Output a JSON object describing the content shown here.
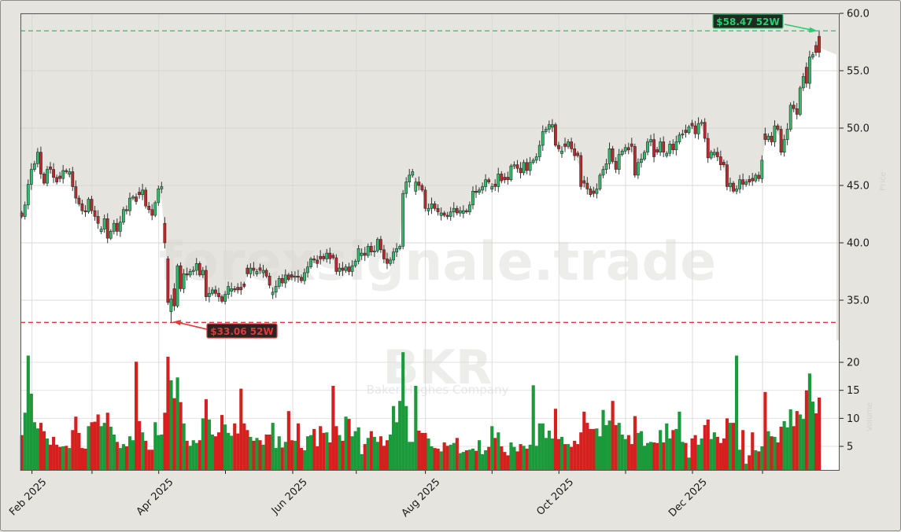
{
  "chart_data": {
    "type": "candlestick",
    "ticker": "BKR",
    "company": "Baker Hughes Company",
    "watermark": "forexsignale.trade",
    "ylabel_price": "Price",
    "ylabel_volume": "Volume",
    "price_axis": {
      "ylim": [
        31.5,
        60.0
      ],
      "ticks": [
        60.0,
        55.0,
        50.0,
        45.0,
        40.0,
        35.0
      ],
      "tick_labels": [
        "60.0",
        "55.0",
        "50.0",
        "45.0",
        "40.0",
        "35.0"
      ]
    },
    "volume_axis": {
      "ticks": [
        20,
        15,
        10,
        5
      ],
      "tick_labels": [
        "20",
        "15",
        "10",
        "5"
      ]
    },
    "x_axis": {
      "ticks": [
        "Feb 2025",
        "Mar 2025",
        "Apr 2025",
        "May 2025",
        "Jun 2025",
        "Jul 2025",
        "Aug 2025",
        "Sep 2025",
        "Oct 2025",
        "Nov 2025",
        "Dec 2025",
        "Jan 2026"
      ],
      "labeled_ticks": [
        "Feb 2025",
        "Apr 2025",
        "Jun 2025",
        "Aug 2025",
        "Oct 2025",
        "Dec 2025"
      ]
    },
    "grid": true,
    "annotations": {
      "high_52w": {
        "value": 58.47,
        "label": "$58.47 52W",
        "color": "#2ecc71"
      },
      "low_52w": {
        "value": 33.06,
        "label": "$33.06 52W",
        "color": "#e03a3a"
      }
    },
    "colors": {
      "up": "#1a9a3a",
      "down": "#d62020",
      "up_candle": "#2ebd6b",
      "down_candle": "#c0282a"
    },
    "close": [
      42.3,
      43.3,
      45.1,
      46.4,
      46.9,
      47.9,
      46.0,
      45.2,
      46.4,
      46.4,
      45.7,
      45.3,
      45.6,
      46.3,
      46.2,
      46.2,
      44.9,
      43.9,
      43.4,
      42.8,
      42.7,
      43.8,
      42.8,
      42.3,
      41.7,
      41.2,
      42.1,
      40.4,
      41.0,
      41.7,
      41.0,
      41.8,
      42.9,
      42.8,
      43.9,
      44.0,
      43.6,
      44.2,
      44.6,
      43.2,
      42.9,
      42.4,
      43.5,
      44.7,
      44.9,
      40.0,
      34.8,
      35.1,
      34.5,
      38.0,
      36.0,
      37.3,
      37.2,
      37.5,
      37.6,
      38.2,
      37.2,
      37.6,
      35.3,
      35.6,
      35.9,
      35.6,
      35.3,
      34.9,
      35.5,
      36.2,
      36.0,
      35.9,
      35.9,
      35.9,
      36.2,
      37.3,
      37.8,
      37.6,
      37.5,
      37.6,
      37.6,
      37.1,
      36.3,
      35.7,
      36.2,
      36.9,
      36.5,
      37.2,
      36.8,
      37.0,
      37.1,
      37.0,
      36.7,
      37.4,
      37.9,
      38.6,
      38.5,
      38.2,
      38.6,
      38.6,
      39.1,
      38.6,
      38.7,
      37.5,
      37.8,
      37.6,
      37.9,
      37.5,
      38.0,
      38.4,
      39.5,
      39.1,
      38.9,
      39.7,
      39.2,
      39.3,
      40.3,
      39.4,
      38.6,
      38.2,
      38.5,
      39.2,
      39.5,
      39.7,
      44.3,
      45.3,
      45.9,
      46.2,
      45.3,
      45.0,
      44.6,
      43.0,
      43.0,
      43.4,
      43.0,
      42.7,
      42.6,
      42.4,
      42.3,
      42.7,
      43.0,
      42.6,
      42.8,
      42.8,
      42.7,
      43.3,
      44.5,
      44.4,
      44.6,
      44.9,
      45.5,
      45.3,
      44.9,
      44.9,
      46.0,
      45.4,
      45.5,
      45.5,
      46.7,
      46.8,
      46.5,
      46.1,
      47.0,
      46.3,
      47.0,
      47.2,
      47.5,
      48.5,
      49.7,
      49.9,
      50.3,
      50.3,
      48.5,
      48.2,
      48.0,
      48.4,
      48.8,
      48.2,
      47.6,
      47.6,
      44.9,
      45.2,
      44.7,
      44.2,
      44.3,
      44.7,
      45.9,
      46.4,
      46.9,
      48.2,
      47.1,
      46.4,
      47.7,
      48.0,
      48.3,
      48.1,
      48.4,
      45.9,
      47.0,
      47.3,
      47.9,
      48.8,
      49.0,
      47.5,
      47.9,
      48.8,
      47.9,
      47.8,
      48.6,
      48.1,
      48.8,
      49.4,
      49.5,
      49.6,
      50.1,
      50.2,
      49.5,
      50.4,
      50.5,
      49.1,
      47.4,
      47.9,
      47.9,
      47.5,
      46.8,
      46.8,
      44.9,
      45.2,
      44.5,
      44.7,
      45.5,
      45.1,
      45.3,
      45.3,
      45.4,
      45.9,
      45.6,
      47.2,
      49.0,
      49.3,
      48.8,
      50.2,
      49.9,
      47.9,
      49.0,
      49.9,
      52.0,
      51.7,
      51.2,
      53.5,
      54.5,
      53.9,
      56.2,
      56.4,
      56.6,
      56.6
    ],
    "direction": "RGGGGGRRGRRRRGRGRRRRRGRRRGGRGGRGGRGGRRGRRRGGGRRGRGRGRGGGRGRGGRRRGGGRRRRRGRGRGRRGGGRGRRGRRGGGRRRRGRRRGRGRGGGGRGRGGRRRGGGGGGGGGRRRGGRRGRRGGRGGRGGRGGGRGRGRRRGGRRGRGGGGGGGGRRGRGRRRRRRRRGGGGGRRGGGRRRGGGGGRRGRGGRGGGRGRRGGRRGGRRRRGRGGRGRRGRGRGRGRRGGGRRGGRGGRR",
    "open_overrides": {
      "45": 41.7,
      "46": 38.6,
      "47": 34.0,
      "48": 36.0,
      "71": 37.8,
      "124": 44.5,
      "234": 49.5,
      "247": 55.3,
      "250": 57.2,
      "251": 58.0
    },
    "high_overrides": {
      "251": 58.47
    },
    "low_overrides": {
      "47": 33.06
    },
    "volume": [
      7.0,
      11.0,
      21.2,
      14.4,
      9.3,
      8.2,
      9.2,
      7.7,
      6.4,
      5.3,
      6.7,
      5.3,
      4.9,
      5.0,
      5.1,
      4.7,
      7.9,
      10.3,
      7.4,
      4.7,
      4.6,
      8.6,
      9.3,
      9.4,
      10.7,
      8.6,
      9.2,
      11.0,
      8.5,
      7.1,
      5.8,
      4.7,
      5.4,
      5.0,
      6.8,
      6.1,
      20.1,
      9.5,
      7.5,
      6.0,
      4.4,
      4.4,
      9.3,
      7.0,
      7.1,
      11.0,
      21.0,
      16.8,
      13.6,
      17.3,
      12.9,
      9.1,
      6.0,
      5.1,
      6.1,
      5.6,
      6.1,
      10.0,
      13.4,
      9.8,
      7.1,
      6.8,
      7.5,
      10.6,
      8.9,
      7.4,
      6.9,
      9.1,
      7.3,
      15.3,
      9.1,
      7.9,
      6.7,
      6.0,
      6.5,
      6.1,
      5.3,
      7.1,
      7.1,
      9.2,
      4.7,
      6.8,
      4.8,
      5.8,
      11.3,
      6.1,
      6.0,
      9.1,
      4.7,
      4.3,
      6.8,
      7.0,
      8.1,
      5.0,
      8.6,
      7.4,
      7.5,
      5.7,
      15.8,
      8.6,
      7.0,
      6.0,
      10.3,
      9.9,
      6.8,
      7.7,
      8.4,
      3.6,
      5.4,
      6.5,
      7.7,
      6.7,
      5.8,
      6.8,
      5.1,
      6.1,
      7.1,
      12.2,
      9.3,
      13.1,
      21.8,
      12.2,
      5.8,
      5.8,
      15.8,
      7.8,
      7.4,
      7.4,
      6.4,
      5.0,
      4.7,
      4.6,
      4.1,
      5.7,
      5.1,
      5.3,
      5.6,
      6.5,
      3.8,
      4.0,
      4.3,
      4.4,
      4.6,
      4.2,
      6.1,
      3.6,
      4.3,
      4.9,
      8.6,
      6.5,
      7.5,
      5.0,
      4.0,
      3.4,
      5.7,
      4.9,
      4.1,
      5.4,
      5.1,
      4.6,
      5.3,
      15.9,
      5.1,
      9.1,
      9.1,
      6.5,
      7.8,
      6.4,
      11.7,
      6.3,
      6.7,
      5.4,
      5.4,
      4.9,
      6.0,
      5.4,
      7.5,
      11.2,
      9.2,
      8.1,
      8.1,
      8.2,
      6.8,
      11.5,
      8.8,
      9.6,
      13.1,
      8.8,
      9.2,
      7.1,
      6.3,
      7.0,
      5.4,
      10.4,
      7.4,
      7.7,
      5.1,
      5.6,
      5.8,
      5.7,
      5.6,
      7.9,
      5.7,
      9.1,
      6.4,
      7.9,
      8.1,
      11.2,
      5.8,
      5.6,
      3.0,
      6.4,
      7.0,
      5.3,
      6.4,
      8.8,
      9.8,
      6.3,
      7.5,
      6.7,
      5.6,
      6.4,
      10.0,
      9.2,
      9.2,
      21.2,
      4.4,
      7.9,
      1.9,
      3.4,
      7.5,
      4.3,
      4.1,
      5.0,
      14.7,
      7.7,
      6.8,
      6.7,
      5.7,
      8.5,
      9.5,
      8.4,
      11.6,
      8.6,
      11.3,
      10.7,
      9.9,
      15.0,
      18.0,
      13.0,
      10.9,
      13.7
    ]
  }
}
